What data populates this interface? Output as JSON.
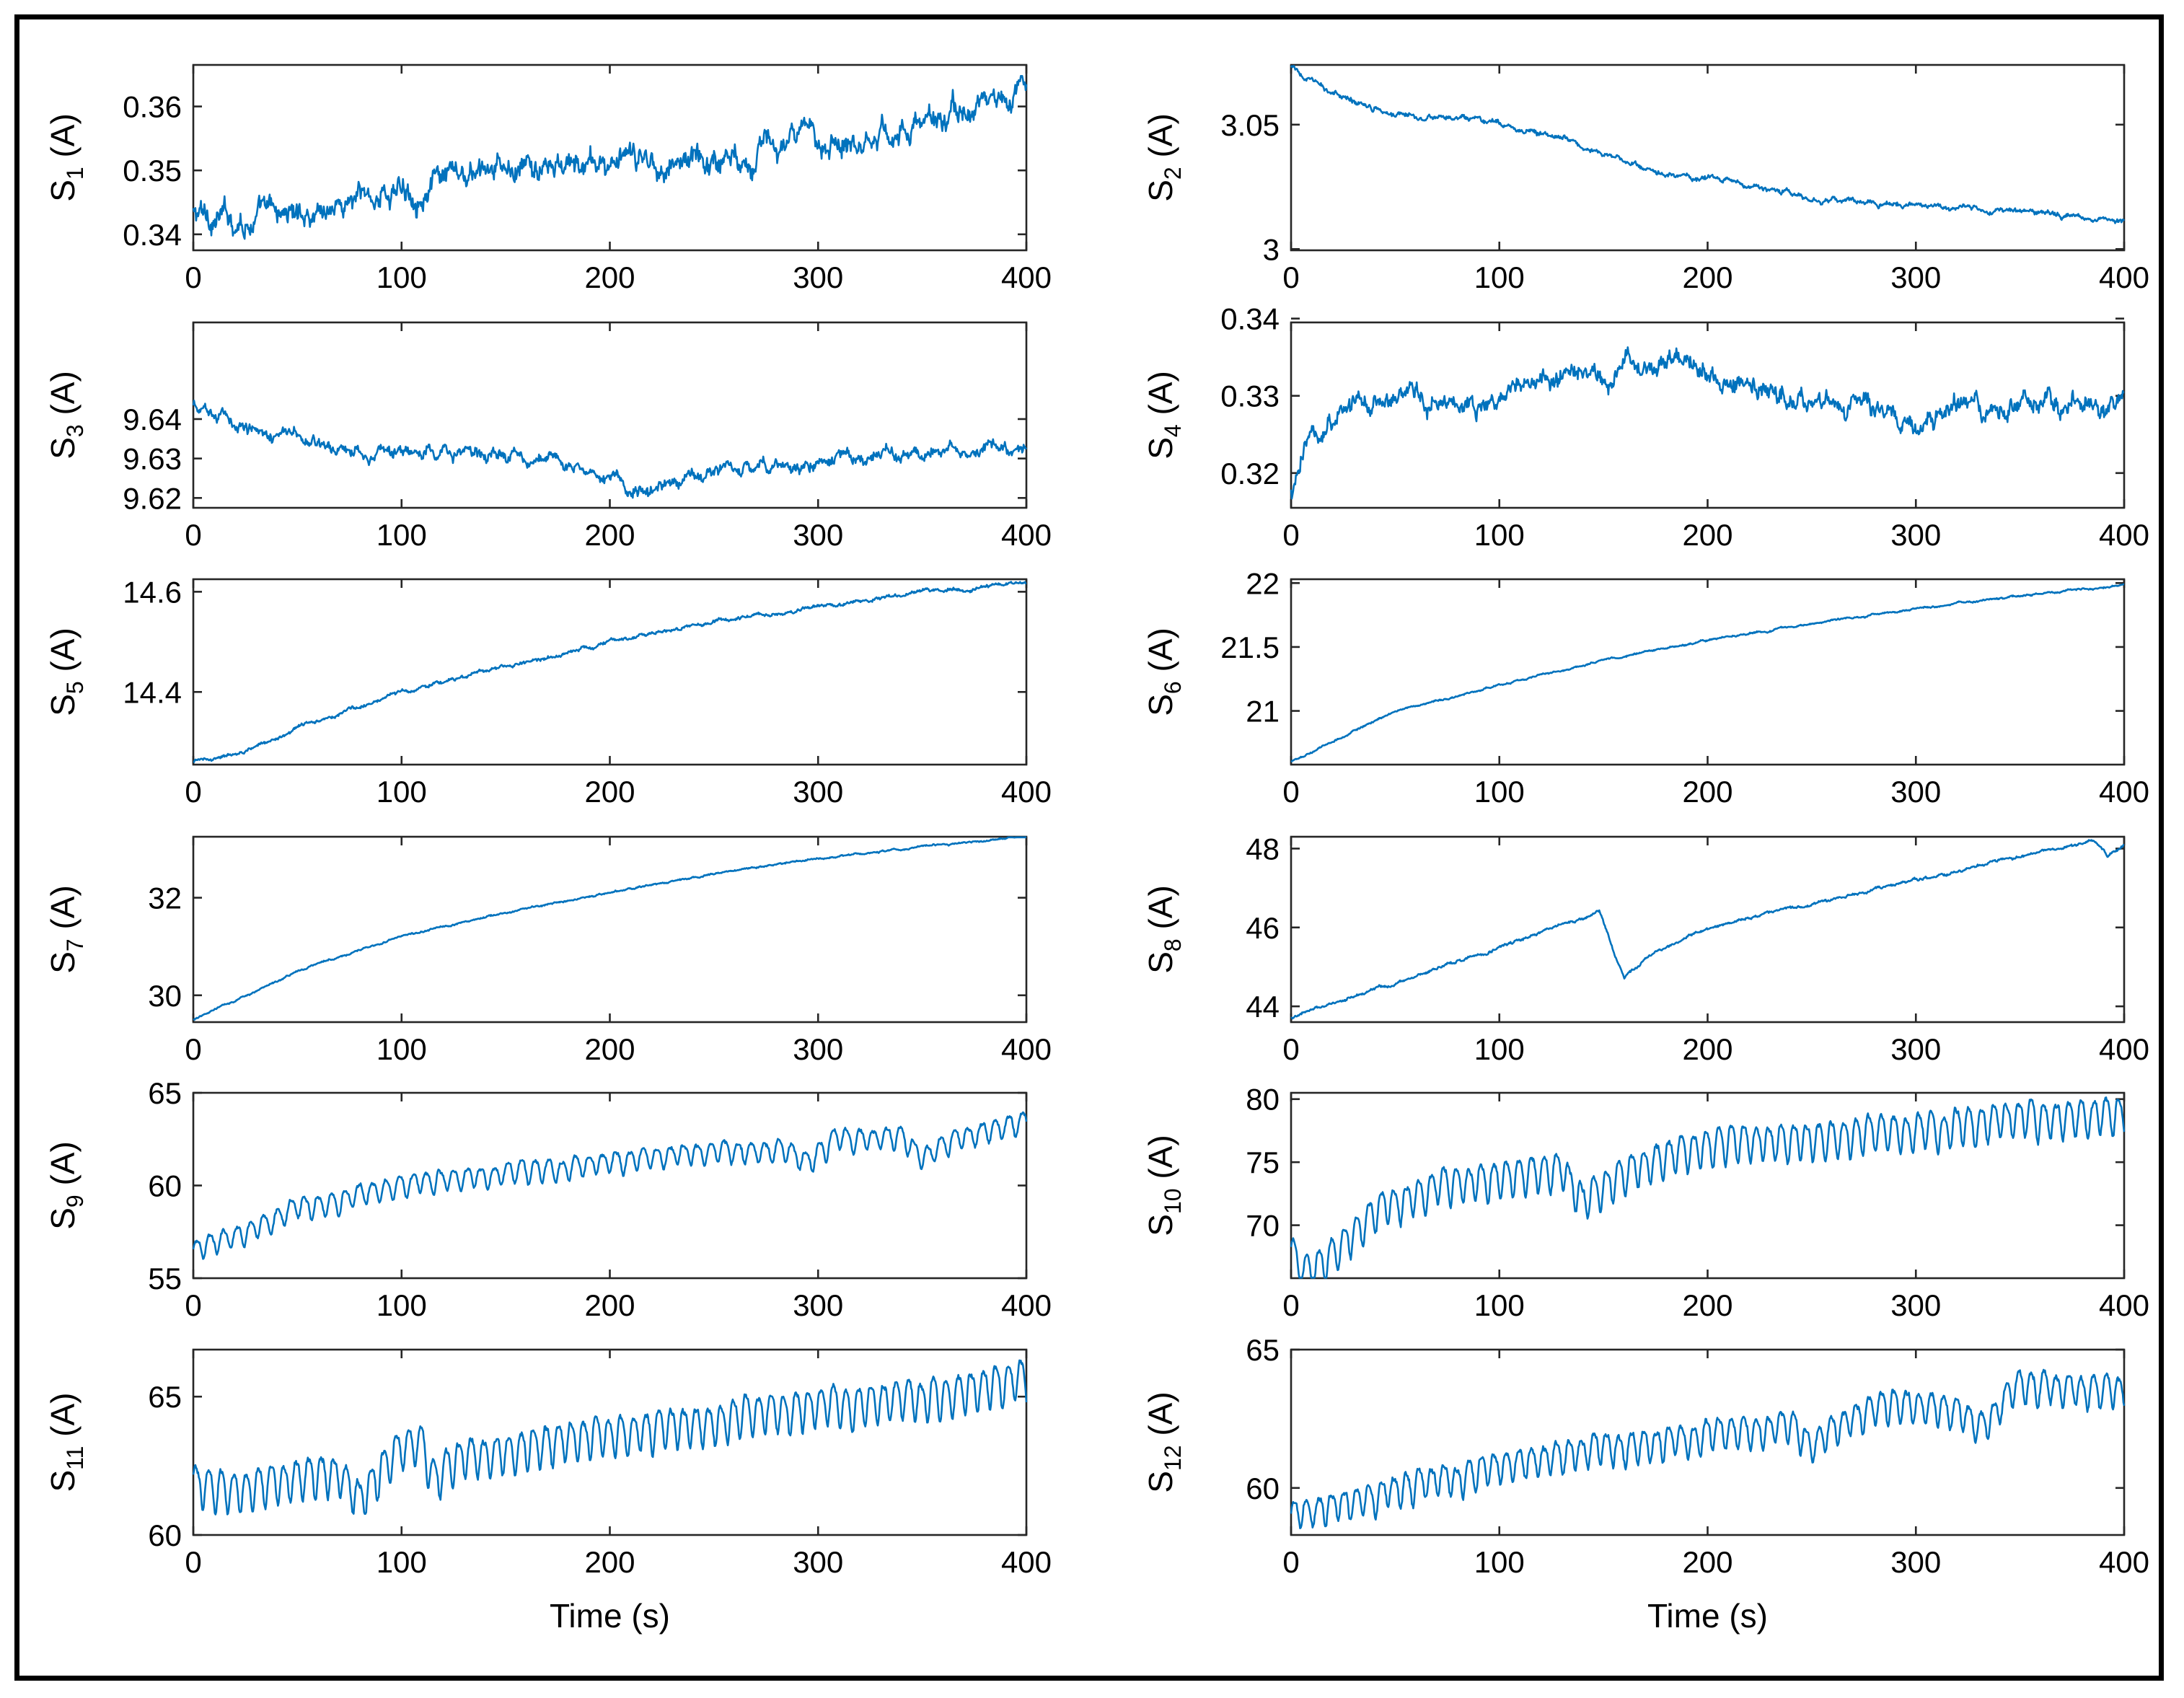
{
  "figure": {
    "line_color": "#0072BD",
    "xlabel": "Time (s)"
  },
  "chart_data": [
    {
      "type": "line",
      "id": "S1",
      "name": "S",
      "sub": "1",
      "unit": "(A)",
      "xlim": [
        0,
        400
      ],
      "xticks": [
        0,
        100,
        200,
        300,
        400
      ],
      "ylim": [
        0.3375,
        0.3665
      ],
      "yticks": [
        0.34,
        0.35,
        0.36
      ],
      "ytick_labels": [
        "0.34",
        "0.35",
        "0.36"
      ],
      "trend": [
        [
          0,
          0.343
        ],
        [
          25,
          0.3425
        ],
        [
          50,
          0.3435
        ],
        [
          100,
          0.347
        ],
        [
          150,
          0.3495
        ],
        [
          200,
          0.351
        ],
        [
          250,
          0.352
        ],
        [
          300,
          0.355
        ],
        [
          350,
          0.357
        ],
        [
          400,
          0.3625
        ]
      ],
      "noise": 0.0022,
      "osc": 0,
      "period": 0,
      "events": []
    },
    {
      "type": "line",
      "id": "S2",
      "name": "S",
      "sub": "2",
      "unit": "(A)",
      "xlim": [
        0,
        400
      ],
      "xticks": [
        0,
        100,
        200,
        300,
        400
      ],
      "ylim": [
        2.9995,
        3.074
      ],
      "yticks": [
        3,
        3.05
      ],
      "ytick_labels": [
        "3",
        "3.05"
      ],
      "trend": [
        [
          0,
          3.073
        ],
        [
          20,
          3.062
        ],
        [
          50,
          3.055
        ],
        [
          100,
          3.05
        ],
        [
          130,
          3.045
        ],
        [
          175,
          3.03
        ],
        [
          200,
          3.029
        ],
        [
          250,
          3.02
        ],
        [
          300,
          3.018
        ],
        [
          350,
          3.015
        ],
        [
          400,
          3.012
        ]
      ],
      "noise": 0.0012,
      "osc": 0,
      "period": 0,
      "events": []
    },
    {
      "type": "line",
      "id": "S3",
      "name": "S",
      "sub": "3",
      "unit": "(A)",
      "xlim": [
        0,
        400
      ],
      "xticks": [
        0,
        100,
        200,
        300,
        400
      ],
      "ylim": [
        9.6175,
        9.6645
      ],
      "yticks": [
        9.62,
        9.63,
        9.64
      ],
      "ytick_labels": [
        "9.62",
        "9.63",
        "9.64"
      ],
      "trend": [
        [
          0,
          9.643
        ],
        [
          30,
          9.638
        ],
        [
          60,
          9.634
        ],
        [
          100,
          9.631
        ],
        [
          150,
          9.631
        ],
        [
          190,
          9.628
        ],
        [
          220,
          9.621
        ],
        [
          250,
          9.627
        ],
        [
          300,
          9.629
        ],
        [
          350,
          9.632
        ],
        [
          400,
          9.632
        ]
      ],
      "noise": 0.0018,
      "osc": 0,
      "period": 0,
      "events": []
    },
    {
      "type": "line",
      "id": "S4",
      "name": "S",
      "sub": "4",
      "unit": "(A)",
      "xlim": [
        0,
        400
      ],
      "xticks": [
        0,
        100,
        200,
        300,
        400
      ],
      "ylim": [
        0.3155,
        0.3395
      ],
      "yticks": [
        0.32,
        0.33,
        0.34
      ],
      "ytick_labels": [
        "0.32",
        "0.33",
        "0.34"
      ],
      "trend": [
        [
          0,
          0.317
        ],
        [
          10,
          0.325
        ],
        [
          30,
          0.329
        ],
        [
          100,
          0.33
        ],
        [
          140,
          0.333
        ],
        [
          190,
          0.335
        ],
        [
          230,
          0.33
        ],
        [
          300,
          0.327
        ],
        [
          350,
          0.329
        ],
        [
          400,
          0.329
        ]
      ],
      "noise": 0.0015,
      "osc": 0,
      "period": 0,
      "events": []
    },
    {
      "type": "line",
      "id": "S5",
      "name": "S",
      "sub": "5",
      "unit": "(A)",
      "xlim": [
        0,
        400
      ],
      "xticks": [
        0,
        100,
        200,
        300,
        400
      ],
      "ylim": [
        14.255,
        14.625
      ],
      "yticks": [
        14.4,
        14.6
      ],
      "ytick_labels": [
        "14.4",
        "14.6"
      ],
      "trend": [
        [
          0,
          14.26
        ],
        [
          25,
          14.28
        ],
        [
          50,
          14.33
        ],
        [
          100,
          14.4
        ],
        [
          150,
          14.45
        ],
        [
          200,
          14.5
        ],
        [
          250,
          14.54
        ],
        [
          300,
          14.57
        ],
        [
          350,
          14.6
        ],
        [
          400,
          14.62
        ]
      ],
      "noise": 0.004,
      "osc": 0,
      "period": 0,
      "events": []
    },
    {
      "type": "line",
      "id": "S6",
      "name": "S",
      "sub": "6",
      "unit": "(A)",
      "xlim": [
        0,
        400
      ],
      "xticks": [
        0,
        100,
        200,
        300,
        400
      ],
      "ylim": [
        20.58,
        22.03
      ],
      "yticks": [
        21,
        21.5,
        22
      ],
      "ytick_labels": [
        "21",
        "21.5",
        "22"
      ],
      "trend": [
        [
          0,
          20.6
        ],
        [
          50,
          21.0
        ],
        [
          100,
          21.2
        ],
        [
          150,
          21.4
        ],
        [
          200,
          21.55
        ],
        [
          250,
          21.68
        ],
        [
          300,
          21.8
        ],
        [
          350,
          21.9
        ],
        [
          400,
          21.99
        ]
      ],
      "noise": 0.008,
      "osc": 0,
      "period": 0,
      "events": []
    },
    {
      "type": "line",
      "id": "S7",
      "name": "S",
      "sub": "7",
      "unit": "(A)",
      "xlim": [
        0,
        400
      ],
      "xticks": [
        0,
        100,
        200,
        300,
        400
      ],
      "ylim": [
        29.45,
        33.25
      ],
      "yticks": [
        30,
        32
      ],
      "ytick_labels": [
        "30",
        "32"
      ],
      "trend": [
        [
          0,
          29.5
        ],
        [
          50,
          30.5
        ],
        [
          100,
          31.2
        ],
        [
          150,
          31.7
        ],
        [
          200,
          32.1
        ],
        [
          250,
          32.5
        ],
        [
          300,
          32.8
        ],
        [
          350,
          33.05
        ],
        [
          400,
          33.25
        ]
      ],
      "noise": 0.02,
      "osc": 0,
      "period": 0,
      "events": []
    },
    {
      "type": "line",
      "id": "S8",
      "name": "S",
      "sub": "8",
      "unit": "(A)",
      "xlim": [
        0,
        400
      ],
      "xticks": [
        0,
        100,
        200,
        300,
        400
      ],
      "ylim": [
        43.6,
        48.3
      ],
      "yticks": [
        44,
        46,
        48
      ],
      "ytick_labels": [
        "44",
        "46",
        "48"
      ],
      "trend": [
        [
          0,
          43.7
        ],
        [
          50,
          44.6
        ],
        [
          100,
          45.5
        ],
        [
          148,
          46.4
        ],
        [
          155,
          45.4
        ],
        [
          160,
          44.7
        ],
        [
          175,
          45.4
        ],
        [
          200,
          46.0
        ],
        [
          250,
          46.6
        ],
        [
          300,
          47.2
        ],
        [
          350,
          47.8
        ],
        [
          385,
          48.2
        ],
        [
          392,
          47.8
        ],
        [
          400,
          48.1
        ]
      ],
      "noise": 0.04,
      "osc": 0,
      "period": 0,
      "events": []
    },
    {
      "type": "line",
      "id": "S9",
      "name": "S",
      "sub": "9",
      "unit": "(A)",
      "xlim": [
        0,
        400
      ],
      "xticks": [
        0,
        100,
        200,
        300,
        400
      ],
      "ylim": [
        55,
        65
      ],
      "yticks": [
        55,
        60,
        65
      ],
      "ytick_labels": [
        "55",
        "60",
        "65"
      ],
      "trend": [
        [
          0,
          56.5
        ],
        [
          25,
          57.5
        ],
        [
          50,
          58.8
        ],
        [
          100,
          60
        ],
        [
          150,
          60.7
        ],
        [
          200,
          61.2
        ],
        [
          250,
          61.8
        ],
        [
          285,
          62
        ],
        [
          295,
          61.2
        ],
        [
          310,
          62.6
        ],
        [
          340,
          62.6
        ],
        [
          350,
          61.5
        ],
        [
          365,
          62.5
        ],
        [
          400,
          63.5
        ]
      ],
      "noise": 0.15,
      "osc": 0.55,
      "period": 6.5,
      "events": []
    },
    {
      "type": "line",
      "id": "S10",
      "name": "S",
      "sub": "10",
      "unit": "(A)",
      "xlim": [
        0,
        400
      ],
      "xticks": [
        0,
        100,
        200,
        300,
        400
      ],
      "ylim": [
        65.8,
        80.5
      ],
      "yticks": [
        70,
        75,
        80
      ],
      "ytick_labels": [
        "70",
        "75",
        "80"
      ],
      "trend": [
        [
          0,
          68
        ],
        [
          6,
          66.3
        ],
        [
          15,
          67
        ],
        [
          40,
          71
        ],
        [
          70,
          73
        ],
        [
          130,
          74.5
        ],
        [
          140,
          72
        ],
        [
          165,
          74.5
        ],
        [
          200,
          76.5
        ],
        [
          250,
          77
        ],
        [
          300,
          77.5
        ],
        [
          350,
          78.5
        ],
        [
          400,
          78.8
        ]
      ],
      "noise": 0.3,
      "osc": 1.4,
      "period": 6,
      "events": []
    },
    {
      "type": "line",
      "id": "S11",
      "name": "S",
      "sub": "11",
      "unit": "(A)",
      "xlim": [
        0,
        400
      ],
      "xticks": [
        0,
        100,
        200,
        300,
        400
      ],
      "ylim": [
        60,
        66.7
      ],
      "yticks": [
        60,
        65
      ],
      "ytick_labels": [
        "60",
        "65"
      ],
      "trend": [
        [
          0,
          62
        ],
        [
          25,
          61.6
        ],
        [
          50,
          62.1
        ],
        [
          70,
          62.3
        ],
        [
          80,
          61.3
        ],
        [
          100,
          63.3
        ],
        [
          110,
          63.3
        ],
        [
          115,
          62.2
        ],
        [
          130,
          62.9
        ],
        [
          200,
          63.7
        ],
        [
          250,
          64.1
        ],
        [
          300,
          64.7
        ],
        [
          350,
          64.9
        ],
        [
          400,
          65.6
        ]
      ],
      "noise": 0.15,
      "osc": 0.7,
      "period": 6,
      "events": []
    },
    {
      "type": "line",
      "id": "S12",
      "name": "S",
      "sub": "12",
      "unit": "(A)",
      "xlim": [
        0,
        400
      ],
      "xticks": [
        0,
        100,
        200,
        300,
        400
      ],
      "ylim": [
        58.3,
        65
      ],
      "yticks": [
        60,
        65
      ],
      "ytick_labels": [
        "60",
        "65"
      ],
      "trend": [
        [
          0,
          59
        ],
        [
          50,
          59.9
        ],
        [
          100,
          60.8
        ],
        [
          150,
          61.4
        ],
        [
          200,
          61.9
        ],
        [
          240,
          62.4
        ],
        [
          250,
          61.5
        ],
        [
          270,
          62.6
        ],
        [
          290,
          63.1
        ],
        [
          300,
          63
        ],
        [
          320,
          62.8
        ],
        [
          330,
          62.1
        ],
        [
          340,
          62.9
        ],
        [
          350,
          63.7
        ],
        [
          400,
          63.5
        ]
      ],
      "noise": 0.15,
      "osc": 0.55,
      "period": 6,
      "events": []
    }
  ]
}
